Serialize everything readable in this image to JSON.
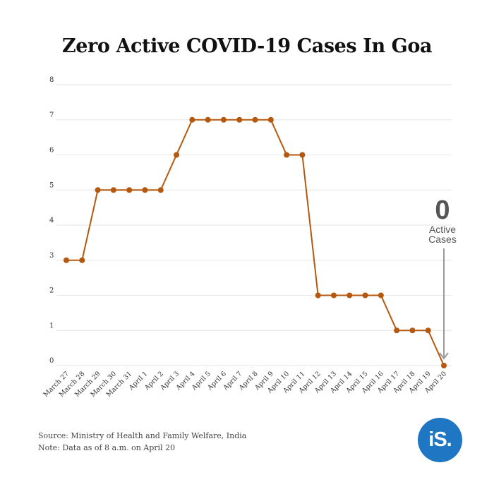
{
  "chart_data": {
    "type": "line",
    "title": "Zero Active COVID-19 Cases In Goa",
    "xlabel": "",
    "ylabel": "",
    "categories": [
      "March 27",
      "March 28",
      "March 29",
      "March 30",
      "March 31",
      "April 1",
      "April 2",
      "April 3",
      "April 4",
      "April 5",
      "April 6",
      "April 7",
      "April 8",
      "April 9",
      "April 10",
      "April 11",
      "April 12",
      "April 13",
      "April 14",
      "April 15",
      "April 16",
      "April 17",
      "April 18",
      "April 19",
      "April 20"
    ],
    "series": [
      {
        "values": [
          3,
          3,
          5,
          5,
          5,
          5,
          5,
          6,
          7,
          7,
          7,
          7,
          7,
          7,
          6,
          6,
          2,
          2,
          2,
          2,
          2,
          1,
          1,
          1,
          0
        ]
      }
    ],
    "ylim": [
      0,
      8
    ],
    "yticks": [
      0,
      1,
      2,
      3,
      4,
      5,
      6,
      7,
      8
    ],
    "grid": true,
    "line_color": "#b5580f",
    "annotation": {
      "value": "0",
      "label_line1": "Active",
      "label_line2": "Cases",
      "target": "April 20"
    }
  },
  "footer": {
    "source": "Source: Ministry of Health and Family Welfare, India",
    "note": "Note: Data as of 8 a.m. on April 20"
  },
  "logo": {
    "text": "iS.",
    "color": "#1f77c4"
  }
}
